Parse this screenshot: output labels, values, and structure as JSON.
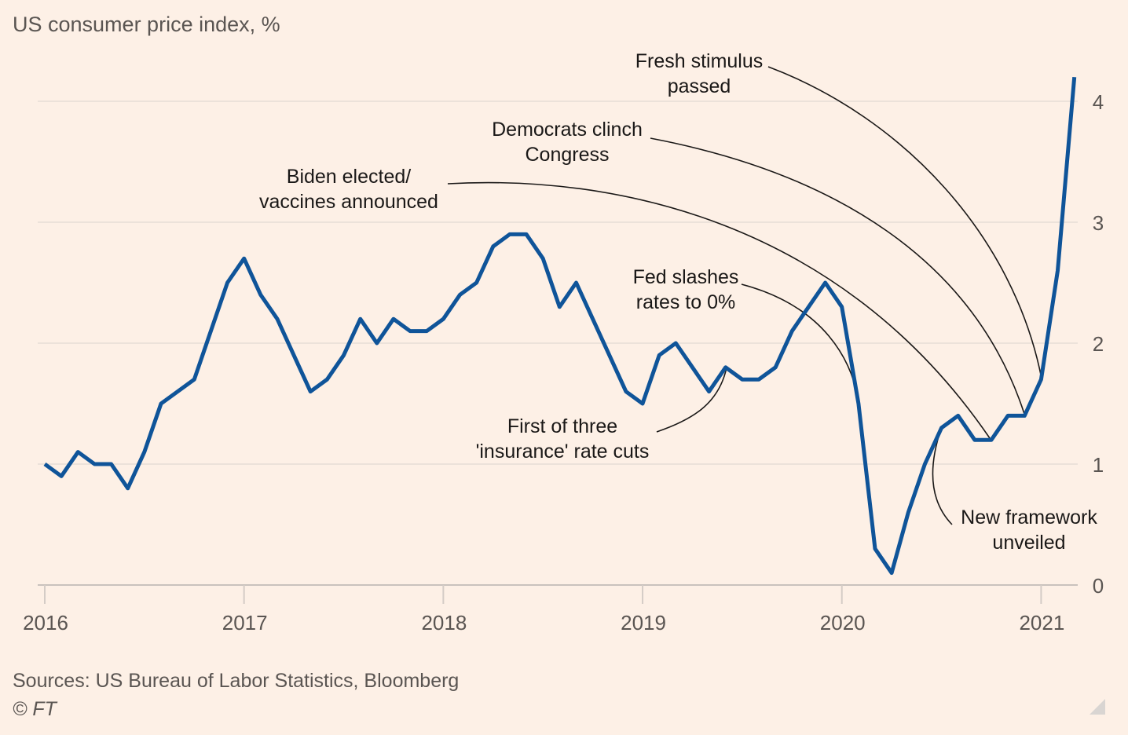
{
  "chart_data": {
    "type": "line",
    "title": "US consumer price index, %",
    "xlabel": "",
    "ylabel": "",
    "frequency": "monthly",
    "start": "2016-01",
    "x_ticks": [
      "2016",
      "2017",
      "2018",
      "2019",
      "2020",
      "2021"
    ],
    "y_ticks": [
      "0",
      "1",
      "2",
      "3",
      "4"
    ],
    "ylim": [
      0,
      4.2
    ],
    "y_axis_side": "right",
    "grid": true,
    "series": [
      {
        "name": "US CPI",
        "color": "#0f5499",
        "values": [
          1.0,
          0.9,
          1.1,
          1.0,
          1.0,
          0.8,
          1.1,
          1.5,
          1.6,
          1.7,
          2.1,
          2.5,
          2.7,
          2.4,
          2.2,
          1.9,
          1.6,
          1.7,
          1.9,
          2.2,
          2.0,
          2.2,
          2.1,
          2.1,
          2.2,
          2.4,
          2.5,
          2.8,
          2.9,
          2.9,
          2.7,
          2.3,
          2.5,
          2.2,
          1.9,
          1.6,
          1.5,
          1.9,
          2.0,
          1.8,
          1.6,
          1.8,
          1.7,
          1.7,
          1.8,
          2.1,
          2.3,
          2.5,
          2.3,
          1.5,
          0.3,
          0.1,
          0.6,
          1.0,
          1.3,
          1.4,
          1.2,
          1.2,
          1.4,
          1.4,
          1.7,
          2.6,
          4.2
        ]
      }
    ],
    "annotations": [
      {
        "id": "fresh-stimulus",
        "lines": [
          "Fresh stimulus",
          "passed"
        ],
        "target_index": 61
      },
      {
        "id": "democrats-clinch",
        "lines": [
          "Democrats clinch",
          "Congress"
        ],
        "target_index": 60
      },
      {
        "id": "biden-elected",
        "lines": [
          "Biden elected/",
          "vaccines announced"
        ],
        "target_index": 58
      },
      {
        "id": "fed-slashes",
        "lines": [
          "Fed slashes",
          "rates to 0%"
        ],
        "target_index": 49
      },
      {
        "id": "insurance-cut",
        "lines": [
          "First of three",
          "'insurance' rate cuts"
        ],
        "target_index": 42
      },
      {
        "id": "new-framework",
        "lines": [
          "New framework",
          "unveiled"
        ],
        "target_index": 55
      }
    ],
    "source": "Sources: US Bureau of Labor Statistics, Bloomberg",
    "copyright": "© FT"
  }
}
